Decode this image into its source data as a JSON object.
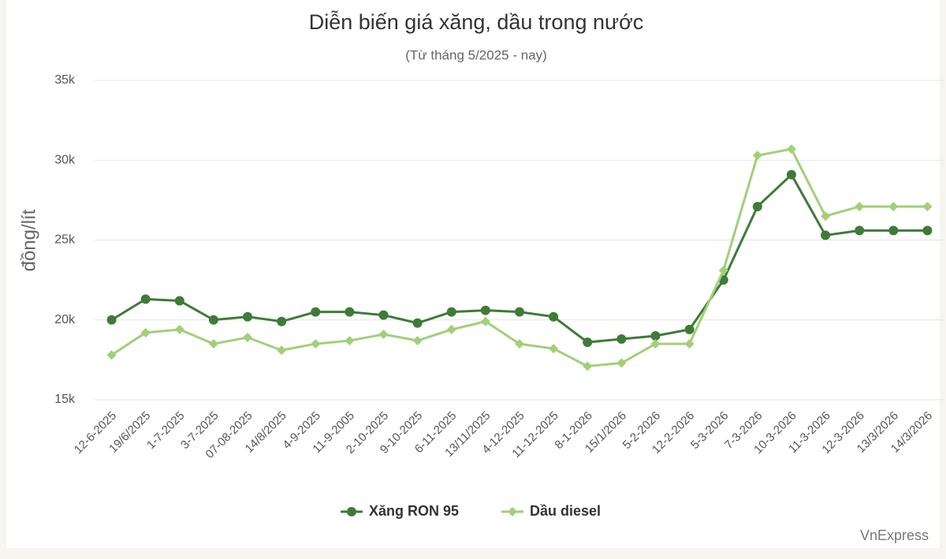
{
  "chart_data": {
    "type": "line",
    "title": "Diễn biến giá xăng, dầu trong nước",
    "subtitle": "(Từ tháng 5/2025 - nay)",
    "ylabel": "đồng/lít",
    "credits": "VnExpress",
    "categories": [
      "12-6-2025",
      "19/6/2025",
      "1-7-2025",
      "3-7-2025",
      "07-08-2025",
      "14/8/2025",
      "4-9-2025",
      "11-9-2005",
      "2-10-2025",
      "9-10-2025",
      "6-11-2025",
      "13/11/2025",
      "4-12-2025",
      "11-12-2025",
      "8-1-2026",
      "15/1/2026",
      "5-2-2026",
      "12-2-2026",
      "5-3-2026",
      "7-3-2026",
      "10-3-2026",
      "11-3-2026",
      "12-3-2026",
      "13/3/2026",
      "14/3/2026"
    ],
    "series": [
      {
        "name": "Xăng RON 95",
        "color": "#3e7b38",
        "marker": "circle",
        "values": [
          20000,
          21300,
          21200,
          20000,
          20200,
          19900,
          20500,
          20500,
          20300,
          19800,
          20500,
          20600,
          20500,
          20200,
          18600,
          18800,
          19000,
          19400,
          22500,
          27100,
          29100,
          25300,
          25600,
          25600,
          25600
        ]
      },
      {
        "name": "Dầu diesel",
        "color": "#a2cf78",
        "marker": "diamond",
        "values": [
          17800,
          19200,
          19400,
          18500,
          18900,
          18100,
          18500,
          18700,
          19100,
          18700,
          19400,
          19900,
          18500,
          18200,
          17100,
          17300,
          18500,
          18500,
          23100,
          30300,
          30700,
          26500,
          27100,
          27100,
          27100
        ]
      }
    ],
    "ylim": [
      15000,
      35000
    ],
    "yticks": [
      {
        "value": 15000,
        "label": "15k"
      },
      {
        "value": 20000,
        "label": "20k"
      },
      {
        "value": 25000,
        "label": "25k"
      },
      {
        "value": 30000,
        "label": "30k"
      },
      {
        "value": 35000,
        "label": "35k"
      }
    ],
    "grid": true,
    "legend": "bottom"
  }
}
